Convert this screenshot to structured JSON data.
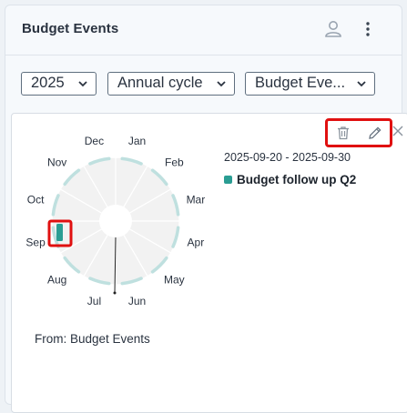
{
  "header": {
    "title": "Budget Events",
    "user_icon": "user-icon",
    "menu_icon": "more-vertical-icon"
  },
  "filters": {
    "year": "2025",
    "view": "Annual cycle",
    "source": "Budget Eve..."
  },
  "card": {
    "actions": {
      "delete_icon": "trash-icon",
      "edit_icon": "pencil-icon",
      "close_icon": "close-icon"
    },
    "date_range": "2025-09-20 - 2025-09-30",
    "event_name": "Budget follow up Q2",
    "event_color": "#2a9d93",
    "from_text": "From: Budget Events",
    "wheel": {
      "months": [
        "Jan",
        "Feb",
        "Mar",
        "Apr",
        "May",
        "Jun",
        "Jul",
        "Aug",
        "Sep",
        "Oct",
        "Nov",
        "Dec"
      ],
      "highlight_month": "Sep",
      "ring_color": "#bfe0df",
      "sector_fill": "#f2f2f2"
    }
  },
  "colors": {
    "accent_red": "#e01010",
    "teal": "#2a9d93"
  }
}
